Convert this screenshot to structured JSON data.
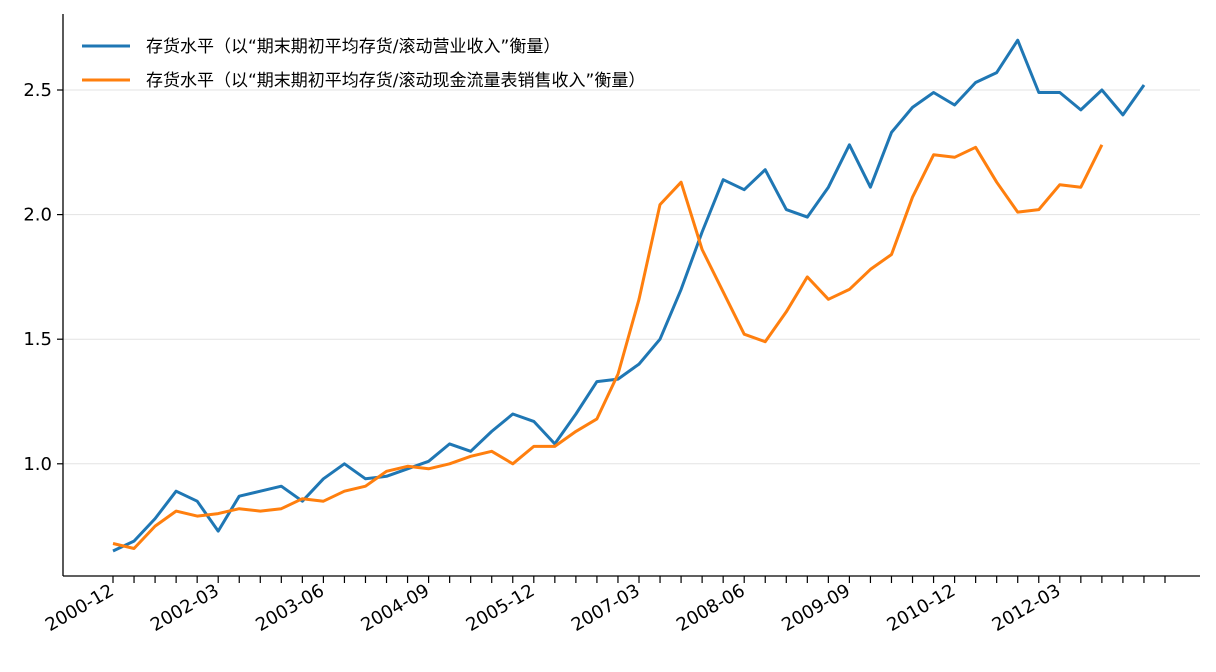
{
  "chart_data": {
    "type": "line",
    "title": "",
    "xlabel": "",
    "ylabel": "",
    "ylim": [
      0.55,
      2.75
    ],
    "yticks": [
      1.0,
      1.5,
      2.0,
      2.5
    ],
    "ytick_labels": [
      "1.0",
      "1.5",
      "2.0",
      "2.5"
    ],
    "grid": "horizontal",
    "legend_position": "top-left",
    "x": [
      "2000-12",
      "2001-03",
      "2001-06",
      "2001-09",
      "2001-12",
      "2002-03",
      "2002-06",
      "2002-09",
      "2002-12",
      "2003-03",
      "2003-06",
      "2003-09",
      "2003-12",
      "2004-03",
      "2004-06",
      "2004-09",
      "2004-12",
      "2005-03",
      "2005-06",
      "2005-09",
      "2005-12",
      "2006-03",
      "2006-06",
      "2006-09",
      "2006-12",
      "2007-03",
      "2007-06",
      "2007-09",
      "2007-12",
      "2008-03",
      "2008-06",
      "2008-09",
      "2008-12",
      "2009-03",
      "2009-06",
      "2009-09",
      "2009-12",
      "2010-03",
      "2010-06",
      "2010-09",
      "2010-12",
      "2011-03",
      "2011-06",
      "2011-09",
      "2011-12",
      "2012-03",
      "2012-06",
      "2012-09",
      "2012-12",
      "2013-03",
      "2013-06"
    ],
    "xtick_labels": [
      "2000-12",
      "2002-03",
      "2003-06",
      "2004-09",
      "2005-12",
      "2007-03",
      "2008-06",
      "2009-09",
      "2010-12",
      "2012-03"
    ],
    "series": [
      {
        "name": "存货水平（以“期末期初平均存货/滚动营业收入”衡量）",
        "color": "#1f77b4",
        "values": [
          0.65,
          0.69,
          0.78,
          0.89,
          0.85,
          0.73,
          0.87,
          0.89,
          0.91,
          0.85,
          0.94,
          1.0,
          0.94,
          0.95,
          0.98,
          1.01,
          1.08,
          1.05,
          1.13,
          1.2,
          1.17,
          1.08,
          1.2,
          1.33,
          1.34,
          1.4,
          1.5,
          1.7,
          1.93,
          2.14,
          2.1,
          2.18,
          2.02,
          1.99,
          2.11,
          2.28,
          2.11,
          2.33,
          2.43,
          2.49,
          2.44,
          2.53,
          2.57,
          2.7,
          2.49,
          2.49,
          2.42,
          2.5,
          2.4,
          2.52,
          null
        ]
      },
      {
        "name": "存货水平（以“期末期初平均存货/滚动现金流量表销售收入”衡量）",
        "color": "#ff7f0e",
        "values": [
          0.68,
          0.66,
          0.75,
          0.81,
          0.79,
          0.8,
          0.82,
          0.81,
          0.82,
          0.86,
          0.85,
          0.89,
          0.91,
          0.97,
          0.99,
          0.98,
          1.0,
          1.03,
          1.05,
          1.0,
          1.07,
          1.07,
          1.13,
          1.18,
          1.36,
          1.66,
          2.04,
          2.13,
          1.86,
          1.69,
          1.52,
          1.49,
          1.61,
          1.75,
          1.66,
          1.7,
          1.78,
          1.84,
          2.07,
          2.24,
          2.23,
          2.27,
          2.13,
          2.01,
          2.02,
          2.12,
          2.11,
          2.28,
          null,
          null,
          null
        ]
      }
    ]
  }
}
